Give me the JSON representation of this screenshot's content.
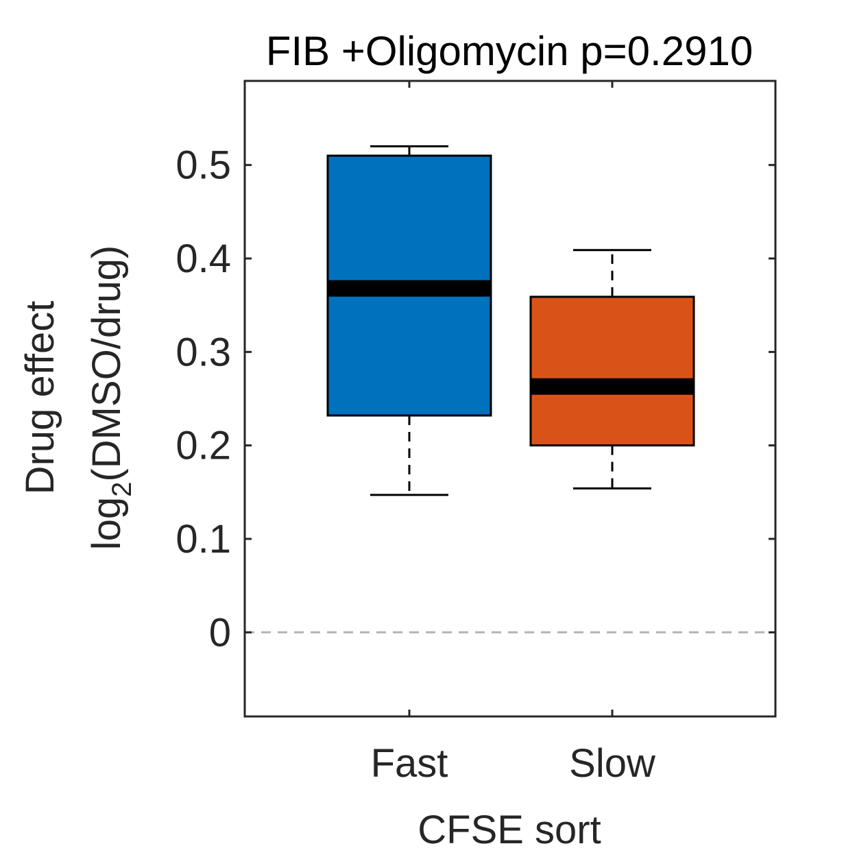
{
  "chart_data": {
    "type": "box",
    "title": "FIB +Oligomycin p=0.2910",
    "xlabel": "CFSE sort",
    "ylabel_line1": "Drug effect",
    "ylabel_line2_prefix": "log",
    "ylabel_line2_subscript": "2",
    "ylabel_line2_suffix": "(DMSO/drug)",
    "categories": [
      "Fast",
      "Slow"
    ],
    "ylim": [
      -0.09,
      0.59
    ],
    "yticks": [
      0,
      0.1,
      0.2,
      0.3,
      0.4,
      0.5
    ],
    "ytick_labels": [
      "0",
      "0.1",
      "0.2",
      "0.3",
      "0.4",
      "0.5"
    ],
    "reference_line": {
      "y": 0,
      "style": "dashed",
      "color": "#b3b3b3"
    },
    "grid": false,
    "boxes": [
      {
        "category": "Fast",
        "whisker_low": 0.147,
        "q1": 0.232,
        "median": 0.368,
        "q3": 0.51,
        "whisker_high": 0.52,
        "color": "#0072bd"
      },
      {
        "category": "Slow",
        "whisker_low": 0.154,
        "q1": 0.2,
        "median": 0.263,
        "q3": 0.359,
        "whisker_high": 0.409,
        "color": "#d95319"
      }
    ]
  }
}
